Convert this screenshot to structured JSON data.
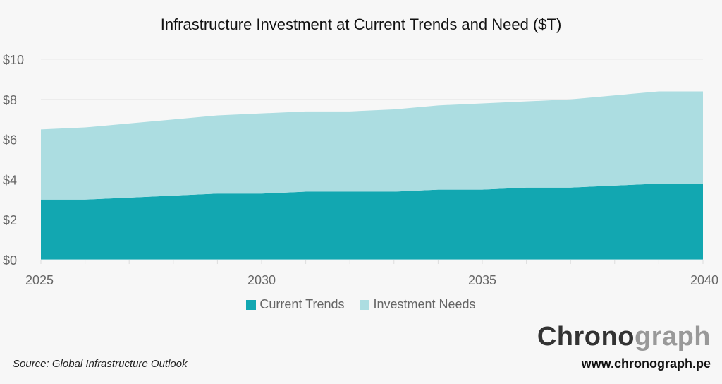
{
  "chart_data": {
    "type": "area",
    "stacked": true,
    "title": "Infrastructure Investment at Current Trends and Need ($T)",
    "xlabel": "",
    "ylabel": "",
    "x": [
      2025,
      2026,
      2027,
      2028,
      2029,
      2030,
      2031,
      2032,
      2033,
      2034,
      2035,
      2036,
      2037,
      2038,
      2039,
      2040
    ],
    "x_ticks": [
      "2025",
      "2030",
      "2035",
      "2040"
    ],
    "y_ticks": [
      "$0",
      "$2",
      "$4",
      "$6",
      "$8",
      "$10"
    ],
    "ylim": [
      0,
      10
    ],
    "grid": true,
    "legend_position": "bottom",
    "series": [
      {
        "name": "Current Trends",
        "color": "#12a7b1",
        "values": [
          3.0,
          3.0,
          3.1,
          3.2,
          3.3,
          3.3,
          3.4,
          3.4,
          3.4,
          3.5,
          3.5,
          3.6,
          3.6,
          3.7,
          3.8,
          3.8
        ]
      },
      {
        "name": "Investment Needs",
        "color": "#acdde1",
        "values": [
          3.5,
          3.6,
          3.7,
          3.8,
          3.9,
          4.0,
          4.0,
          4.0,
          4.1,
          4.2,
          4.3,
          4.3,
          4.4,
          4.5,
          4.6,
          4.6
        ]
      }
    ]
  },
  "footer": {
    "source": "Source: Global Infrastructure Outlook",
    "logo_a": "Chrono",
    "logo_b": "graph",
    "url": "www.chronograph.pe"
  }
}
